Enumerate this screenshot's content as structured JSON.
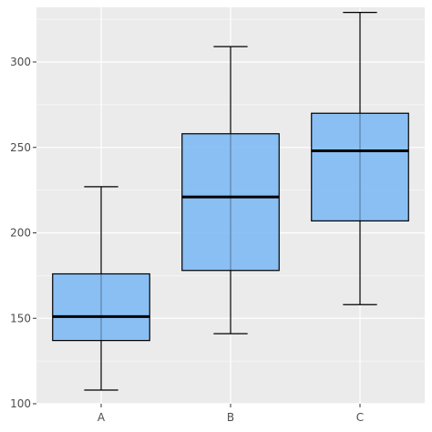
{
  "chart_data": {
    "type": "boxplot",
    "title": "",
    "xlabel": "",
    "ylabel": "",
    "categories": [
      "A",
      "B",
      "C"
    ],
    "boxes": [
      {
        "category": "A",
        "whisker_low": 108,
        "q1": 137,
        "median": 151,
        "q3": 176,
        "whisker_high": 227
      },
      {
        "category": "B",
        "whisker_low": 141,
        "q1": 178,
        "median": 221,
        "q3": 258,
        "whisker_high": 309
      },
      {
        "category": "C",
        "whisker_low": 158,
        "q1": 207,
        "median": 248,
        "q3": 270,
        "whisker_high": 329
      }
    ],
    "ylim": [
      100,
      332
    ],
    "yticks": [
      100,
      150,
      200,
      250,
      300
    ],
    "grid": true,
    "colors": {
      "panel": "#ebebeb",
      "grid": "#ffffff",
      "box_fill": "#7fbaf5",
      "box_stroke": "#000000",
      "tick_text": "#4d4d4d"
    }
  }
}
